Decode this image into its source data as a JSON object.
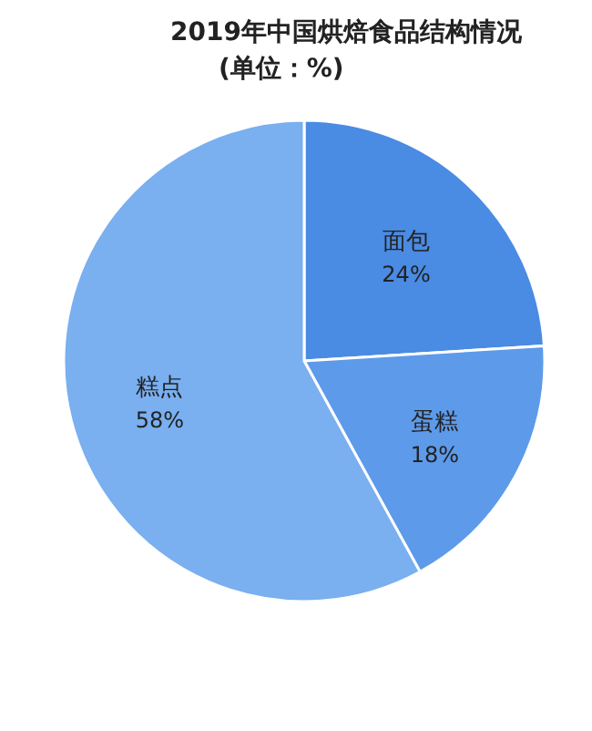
{
  "chart_data": {
    "type": "pie",
    "title": "2019年中国烘焙食品结构情况",
    "subtitle": "(单位：%)",
    "categories": [
      "面包",
      "蛋糕",
      "糕点"
    ],
    "values": [
      24,
      18,
      58
    ],
    "value_labels": [
      "24%",
      "18%",
      "58%"
    ],
    "colors": [
      "#4a8be3",
      "#5d9aea",
      "#7aaff0"
    ]
  }
}
